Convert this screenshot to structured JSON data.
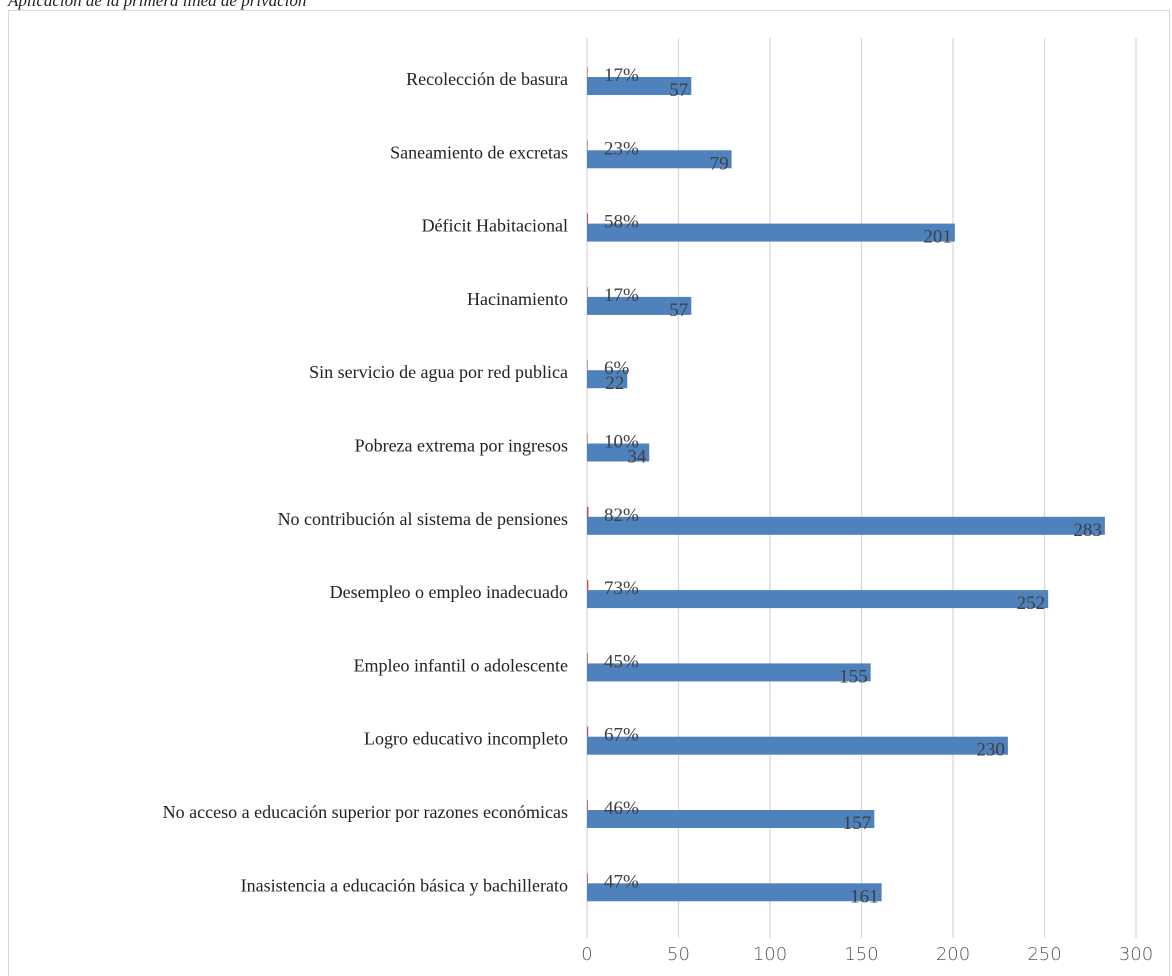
{
  "caption": "Aplicación de la primera línea de privación",
  "chart_data": {
    "type": "bar",
    "orientation": "horizontal",
    "categories": [
      "Recolección de basura",
      "Saneamiento de excretas",
      "Déficit Habitacional",
      "Hacinamiento",
      "Sin servicio de agua por red publica",
      "Pobreza extrema por ingresos",
      "No contribución al sistema de pensiones",
      "Desempleo o empleo inadecuado",
      "Empleo infantil o adolescente",
      "Logro educativo incompleto",
      "No acceso a educación superior por razones económicas",
      "Inasistencia a educación básica y bachillerato"
    ],
    "series": [
      {
        "values": [
          57,
          79,
          201,
          57,
          22,
          34,
          283,
          252,
          155,
          230,
          157,
          161
        ],
        "color": "#4f81bd"
      },
      {
        "values": [
          0.17,
          0.23,
          0.58,
          0.17,
          0.06,
          0.1,
          0.82,
          0.73,
          0.45,
          0.67,
          0.46,
          0.47
        ],
        "color": "#c0504d"
      }
    ],
    "value_labels": [
      "57",
      "79",
      "201",
      "57",
      "22",
      "34",
      "283",
      "252",
      "155",
      "230",
      "157",
      "161"
    ],
    "percent_labels": [
      "17%",
      "23%",
      "58%",
      "17%",
      "6%",
      "10%",
      "82%",
      "73%",
      "45%",
      "67%",
      "46%",
      "47%"
    ],
    "x_ticks": [
      "0",
      "50",
      "100",
      "150",
      "200",
      "250",
      "300"
    ],
    "xlim": [
      0,
      300
    ],
    "grid": "vertical"
  }
}
